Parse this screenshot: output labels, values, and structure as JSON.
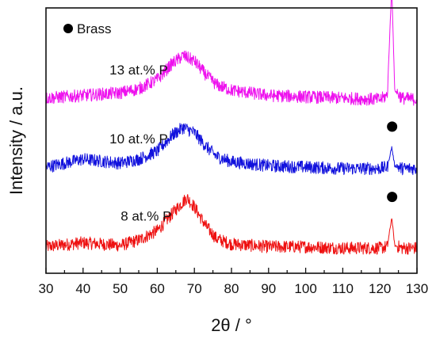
{
  "chart_data": {
    "type": "line",
    "xlabel": "2θ / °",
    "ylabel": "Intensity / a.u.",
    "xlim": [
      30,
      130
    ],
    "xticks": [
      30,
      40,
      50,
      60,
      70,
      80,
      90,
      100,
      110,
      120,
      130
    ],
    "ylim": [
      0,
      10
    ],
    "grid": false,
    "legend": {
      "label": "Brass",
      "marker": "filled-circle",
      "placement": "top-left"
    },
    "series": [
      {
        "name": "8 at.% P",
        "color": "#ee1111",
        "baseline": 1.0,
        "points": [
          [
            30,
            1.0
          ],
          [
            40,
            1.15
          ],
          [
            50,
            1.05
          ],
          [
            55,
            1.25
          ],
          [
            60,
            1.6
          ],
          [
            65,
            2.4
          ],
          [
            68,
            2.85
          ],
          [
            70,
            2.5
          ],
          [
            73,
            1.8
          ],
          [
            76,
            1.3
          ],
          [
            80,
            1.1
          ],
          [
            90,
            1.0
          ],
          [
            100,
            1.0
          ],
          [
            110,
            0.95
          ],
          [
            120,
            0.95
          ],
          [
            122,
            1.0
          ],
          [
            123.2,
            2.1
          ],
          [
            124,
            1.05
          ],
          [
            126,
            0.95
          ],
          [
            130,
            0.95
          ]
        ],
        "brass_peak": 123.3
      },
      {
        "name": "10 at.% P",
        "color": "#1111dd",
        "baseline": 4.0,
        "points": [
          [
            30,
            4.0
          ],
          [
            40,
            4.3
          ],
          [
            50,
            4.15
          ],
          [
            55,
            4.3
          ],
          [
            60,
            4.6
          ],
          [
            64,
            5.2
          ],
          [
            67,
            5.5
          ],
          [
            70,
            5.3
          ],
          [
            73,
            4.8
          ],
          [
            76,
            4.4
          ],
          [
            80,
            4.2
          ],
          [
            90,
            4.05
          ],
          [
            100,
            4.0
          ],
          [
            110,
            3.95
          ],
          [
            120,
            3.95
          ],
          [
            122,
            4.0
          ],
          [
            123.2,
            4.75
          ],
          [
            124,
            4.05
          ],
          [
            126,
            3.95
          ],
          [
            130,
            3.95
          ]
        ],
        "brass_peak": 123.3
      },
      {
        "name": "13 at.% P",
        "color": "#ee11ee",
        "baseline": 6.6,
        "points": [
          [
            30,
            6.6
          ],
          [
            40,
            6.7
          ],
          [
            50,
            6.8
          ],
          [
            55,
            6.95
          ],
          [
            60,
            7.3
          ],
          [
            64,
            7.9
          ],
          [
            67,
            8.2
          ],
          [
            70,
            8.0
          ],
          [
            73,
            7.5
          ],
          [
            76,
            7.1
          ],
          [
            80,
            6.9
          ],
          [
            90,
            6.7
          ],
          [
            100,
            6.65
          ],
          [
            110,
            6.6
          ],
          [
            120,
            6.55
          ],
          [
            122,
            6.7
          ],
          [
            123.2,
            10.85
          ],
          [
            124,
            6.9
          ],
          [
            126,
            6.6
          ],
          [
            130,
            6.55
          ]
        ],
        "brass_peak": 123.3
      }
    ]
  }
}
